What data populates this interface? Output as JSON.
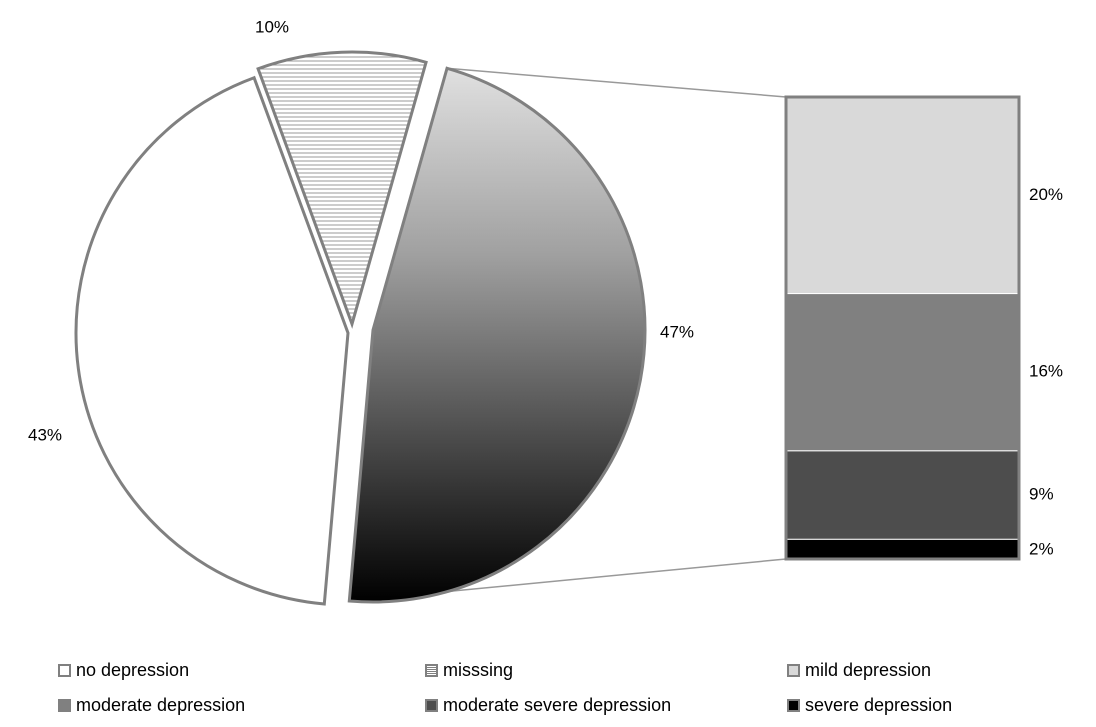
{
  "chart_data": {
    "type": "pie",
    "pie": {
      "slices": [
        {
          "label": "no depression",
          "value": 43,
          "value_label": "43%"
        },
        {
          "label": "misssing",
          "value": 10,
          "value_label": "10%"
        },
        {
          "label": "mild depression",
          "value": 47,
          "value_label": "47%"
        }
      ]
    },
    "breakdown_bar": {
      "of_slice": "mild depression",
      "segments": [
        {
          "label": "mild depression",
          "value": 20,
          "value_label": "20%"
        },
        {
          "label": "moderate depression",
          "value": 16,
          "value_label": "16%"
        },
        {
          "label": "moderate severe depression",
          "value": 9,
          "value_label": "9%"
        },
        {
          "label": "severe depression",
          "value": 2,
          "value_label": "2%"
        }
      ]
    },
    "legend": {
      "placement": "bottom",
      "entries": [
        {
          "label": "no depression",
          "color": "#ffffff",
          "border": "#808080"
        },
        {
          "label": "misssing",
          "color": "#d9d9d9",
          "border": "#808080",
          "pattern": "horizontal-lines"
        },
        {
          "label": "mild depression",
          "color": "#d9d9d9",
          "border": "#808080"
        },
        {
          "label": "moderate depression",
          "color": "#808080",
          "border": "#808080"
        },
        {
          "label": "moderate severe depression",
          "color": "#4d4d4d",
          "border": "#808080"
        },
        {
          "label": "severe depression",
          "color": "#000000",
          "border": "#808080"
        }
      ]
    }
  },
  "colors": {
    "outline": "#808080",
    "connector": "#999999",
    "mild_gradient_top": "#e0e0e0",
    "mild_gradient_bottom": "#000000"
  }
}
